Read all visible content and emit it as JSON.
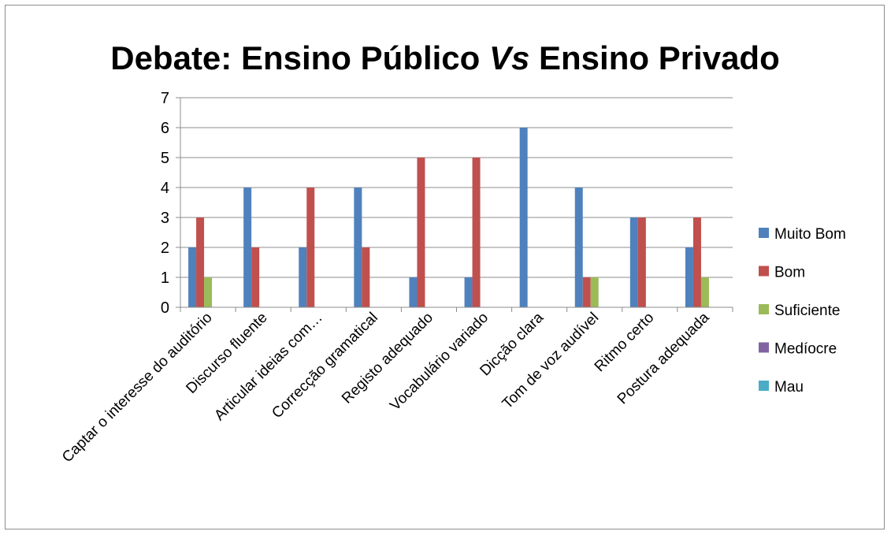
{
  "chart_data": {
    "type": "bar",
    "title": {
      "part1": "Debate: Ensino Público ",
      "part2": "Vs",
      "part3": " Ensino Privado"
    },
    "categories": [
      "Captar o interesse do auditório",
      "Discurso fluente",
      "Articular ideias com…",
      "Correcção gramatical",
      "Registo adequado",
      "Vocabulário variado",
      "Dicção clara",
      "Tom de voz audível",
      "Ritmo certo",
      "Postura adequada"
    ],
    "series": [
      {
        "name": "Muito Bom",
        "color": "#4f81bd",
        "values": [
          2,
          4,
          2,
          4,
          1,
          1,
          6,
          4,
          3,
          2
        ]
      },
      {
        "name": "Bom",
        "color": "#c0504d",
        "values": [
          3,
          2,
          4,
          2,
          5,
          5,
          0,
          1,
          3,
          3
        ]
      },
      {
        "name": "Suficiente",
        "color": "#9bbb59",
        "values": [
          1,
          0,
          0,
          0,
          0,
          0,
          0,
          1,
          0,
          1
        ]
      },
      {
        "name": "Medíocre",
        "color": "#8064a2",
        "values": [
          0,
          0,
          0,
          0,
          0,
          0,
          0,
          0,
          0,
          0
        ]
      },
      {
        "name": "Mau",
        "color": "#4bacc6",
        "values": [
          0,
          0,
          0,
          0,
          0,
          0,
          0,
          0,
          0,
          0
        ]
      }
    ],
    "ylim": [
      0,
      7
    ],
    "yticks": [
      "0",
      "1",
      "2",
      "3",
      "4",
      "5",
      "6",
      "7"
    ],
    "grid": true,
    "legend_position": "right"
  }
}
